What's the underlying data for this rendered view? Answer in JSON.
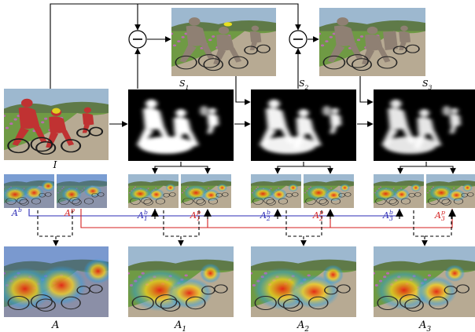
{
  "input": {
    "label": "I"
  },
  "seeds": [
    {
      "label": "S1",
      "base": "S",
      "sub": "1"
    },
    {
      "label": "S2",
      "base": "S",
      "sub": "2"
    },
    {
      "label": "S3",
      "base": "S",
      "sub": "3"
    }
  ],
  "attention_pairs": [
    {
      "b": {
        "base": "A",
        "sup": "b",
        "sub": ""
      },
      "p": {
        "base": "A",
        "sup": "p",
        "sub": ""
      }
    },
    {
      "b": {
        "base": "A",
        "sup": "b",
        "sub": "1"
      },
      "p": {
        "base": "A",
        "sup": "p",
        "sub": "1"
      }
    },
    {
      "b": {
        "base": "A",
        "sup": "b",
        "sub": "2"
      },
      "p": {
        "base": "A",
        "sup": "p",
        "sub": "2"
      }
    },
    {
      "b": {
        "base": "A",
        "sup": "b",
        "sub": "3"
      },
      "p": {
        "base": "A",
        "sup": "p",
        "sub": "3"
      }
    }
  ],
  "outputs": [
    {
      "label": "A",
      "base": "A",
      "sub": ""
    },
    {
      "label": "A1",
      "base": "A",
      "sub": "1"
    },
    {
      "label": "A2",
      "base": "A",
      "sub": "2"
    },
    {
      "label": "A3",
      "base": "A",
      "sub": "3"
    }
  ],
  "operators": {
    "subtract_symbol": "−"
  },
  "colors": {
    "line": "#000000",
    "branch_b": "#2b2bb5",
    "branch_p": "#d42020",
    "sky": "#9db8cf",
    "hills": "#5f7a48",
    "field": "#6f9a44",
    "flowers": "#b86bb0",
    "path": "#b7aa93",
    "mask_bg": "#000000",
    "mask_fg": "#ffffff",
    "erased": "#8f8073",
    "heat_hot": "#e52410",
    "heat_warm": "#f5d21d",
    "heat_cool": "#2fa0e0"
  }
}
